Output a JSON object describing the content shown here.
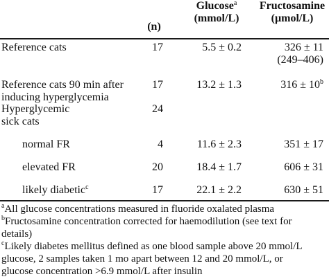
{
  "header": {
    "n": "(n)",
    "glucose": {
      "title": "Glucose",
      "sup": "a",
      "unit": "(mmol/L)"
    },
    "fructosamine": {
      "title": "Fructosamine",
      "unit": "(µmol/L)"
    }
  },
  "rows": [
    {
      "label": [
        "Reference cats"
      ],
      "n": "17",
      "glucose": "5.5 ± 0.2",
      "fructosamine": "326 ± 11",
      "fructosamine_range": "(249–406)",
      "fructosamine_sup": ""
    },
    {
      "label": [
        "Reference cats 90 min after",
        "inducing hyperglycemia"
      ],
      "n": "17",
      "glucose": "13.2 ± 1.3",
      "fructosamine": "316 ± 10",
      "fructosamine_range": "",
      "fructosamine_sup": "b"
    },
    {
      "label": [
        "Hyperglycemic",
        "sick cats"
      ],
      "n": "24",
      "glucose": "",
      "fructosamine": "",
      "fructosamine_range": "",
      "fructosamine_sup": ""
    },
    {
      "label": [
        "normal FR"
      ],
      "n": "4",
      "glucose": "11.6 ± 2.3",
      "fructosamine": "351 ± 17",
      "fructosamine_range": "",
      "fructosamine_sup": ""
    },
    {
      "label": [
        "elevated FR"
      ],
      "n": "20",
      "glucose": "18.4 ± 1.7",
      "fructosamine": "606 ± 31",
      "fructosamine_range": "",
      "fructosamine_sup": ""
    },
    {
      "label": [
        "likely diabetic"
      ],
      "label_sup": "c",
      "n": "17",
      "glucose": "22.1 ± 2.2",
      "fructosamine": "630 ± 51",
      "fructosamine_range": "",
      "fructosamine_sup": ""
    }
  ],
  "footnotes": [
    {
      "mark": "a",
      "lines": [
        "All glucose concentrations measured in fluoride oxalated plasma"
      ]
    },
    {
      "mark": "b",
      "lines": [
        "Fructosamine concentration corrected for haemodilution (see text for",
        "details)"
      ]
    },
    {
      "mark": "c",
      "lines": [
        "Likely diabetes mellitus defined as one blood sample above 20 mmol/L",
        "glucose, 2 samples taken 1 mo apart between 12 and 20 mmol/L, or",
        "glucose concentration >6.9 mmol/L after insulin"
      ]
    }
  ]
}
